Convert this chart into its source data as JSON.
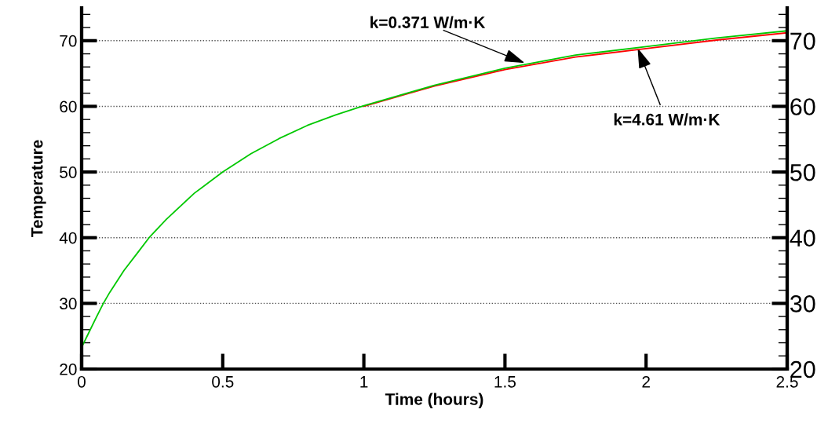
{
  "chart_data": {
    "type": "line",
    "xlabel": "Time (hours)",
    "ylabel": "Temperature",
    "x": [
      0,
      0.025,
      0.05,
      0.077,
      0.1,
      0.15,
      0.2,
      0.239,
      0.3,
      0.4,
      0.5,
      0.6,
      0.7,
      0.8,
      0.9,
      1.0,
      1.25,
      1.5,
      1.75,
      2.0,
      2.25,
      2.5
    ],
    "series": [
      {
        "color": "#ff0000",
        "values": [
          null,
          null,
          null,
          null,
          null,
          null,
          null,
          null,
          null,
          null,
          null,
          null,
          null,
          null,
          null,
          60.0,
          63.1,
          65.6,
          67.5,
          68.8,
          70.1,
          71.2
        ]
      },
      {
        "color": "#00c800",
        "values": [
          23.3,
          25.5,
          27.7,
          30,
          31.7,
          35,
          37.8,
          40,
          42.8,
          46.8,
          50,
          52.8,
          55.1,
          57.1,
          58.7,
          60.1,
          63.2,
          65.8,
          67.8,
          69.1,
          70.4,
          71.5
        ]
      }
    ],
    "xlim": [
      0,
      2.5
    ],
    "xticks": [
      {
        "value": 0,
        "label": "0"
      },
      0.5,
      {
        "value": 1,
        "label": "1"
      },
      1.5,
      {
        "value": 2,
        "label": "2"
      },
      2.5
    ],
    "ylim": [
      20,
      75
    ],
    "yticks": [
      20,
      30,
      40,
      50,
      60,
      70
    ],
    "y2lim": [
      20,
      75
    ],
    "y2ticks": [
      20,
      30,
      40,
      50,
      60,
      70
    ],
    "grid": "y",
    "line_style": "solid",
    "marker": "none",
    "annotations": [
      {
        "text": "k=0.371 W/m·K",
        "x": 1.57,
        "y": 66.6
      },
      {
        "text": "k=4.61 W/m·K",
        "x": 1.97,
        "y": 68.9
      }
    ]
  }
}
